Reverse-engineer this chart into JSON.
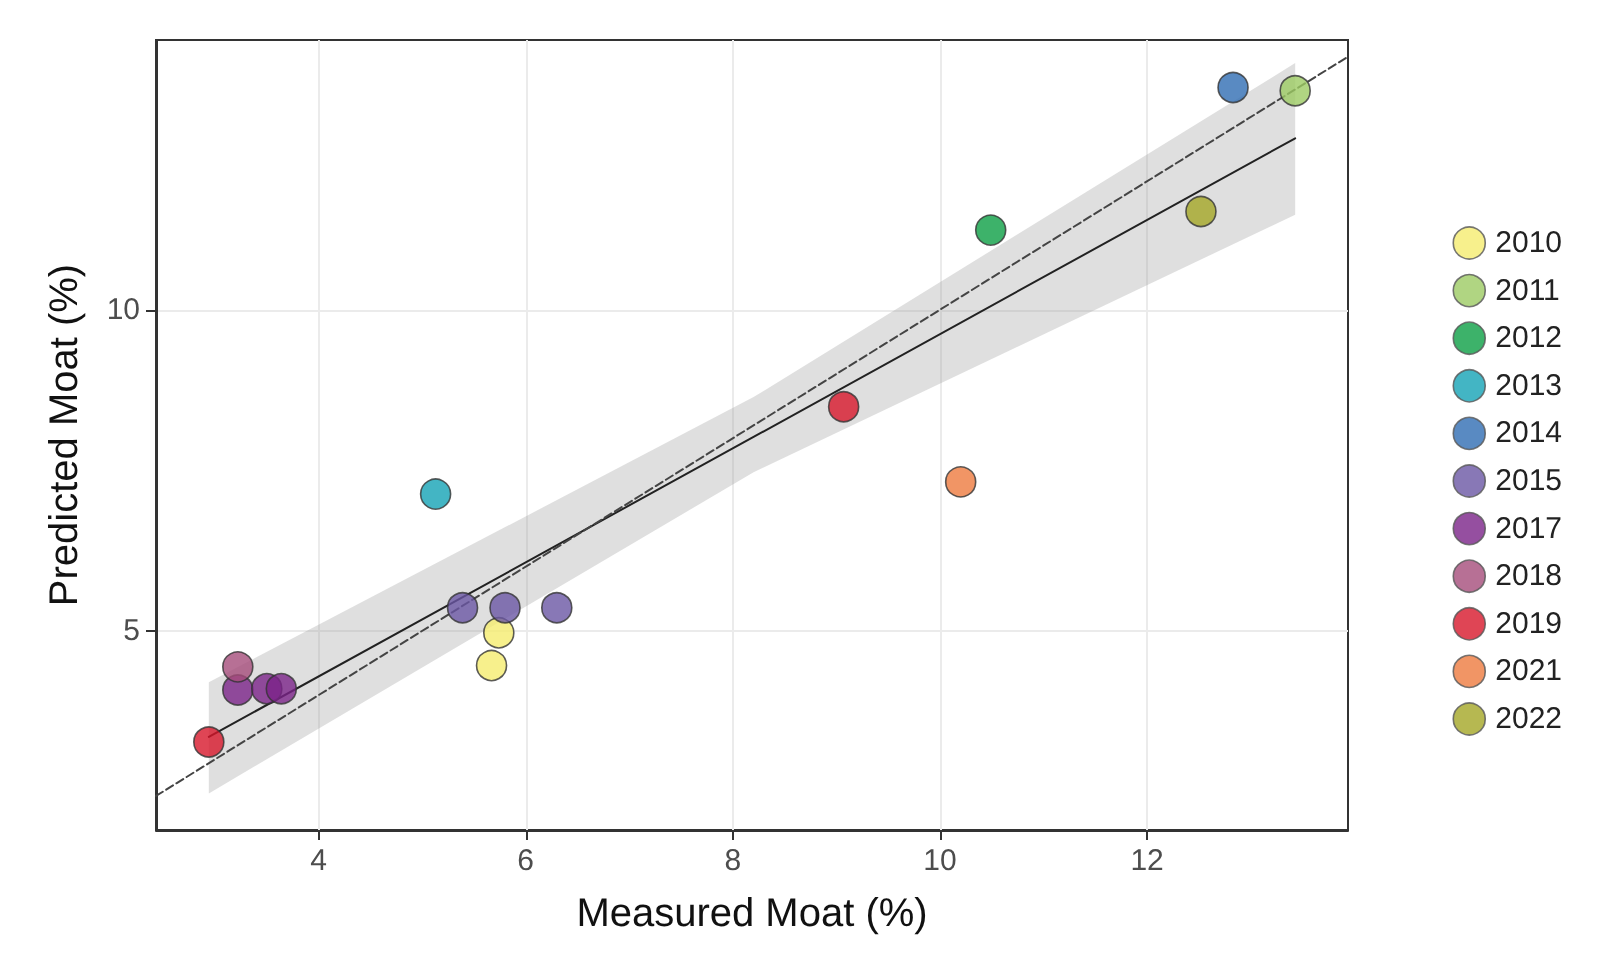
{
  "chart_data": {
    "type": "scatter",
    "xlabel": "Measured Moat (%)",
    "ylabel": "Predicted Moat (%)",
    "xlim": [
      2.43,
      13.94
    ],
    "ylim": [
      1.9,
      14.2
    ],
    "xticks": [
      4,
      6,
      8,
      10,
      12
    ],
    "yticks": [
      5,
      10
    ],
    "grid": true,
    "legend": "right",
    "marker": "circle",
    "series": [
      {
        "name": "2010",
        "color": "#f5ec6f",
        "x": [
          5.74,
          5.67
        ],
        "values": [
          4.97,
          4.46
        ]
      },
      {
        "name": "2011",
        "color": "#9ccb63",
        "x": [
          13.43
        ],
        "values": [
          13.41
        ]
      },
      {
        "name": "2012",
        "color": "#0c9f45",
        "x": [
          10.49
        ],
        "values": [
          11.24
        ]
      },
      {
        "name": "2013",
        "color": "#14a3b5",
        "x": [
          5.13
        ],
        "values": [
          7.13
        ]
      },
      {
        "name": "2014",
        "color": "#2f6db3",
        "x": [
          12.83
        ],
        "values": [
          13.46
        ]
      },
      {
        "name": "2015",
        "color": "#6a56a4",
        "x": [
          5.39,
          5.8,
          6.3
        ],
        "values": [
          5.36,
          5.36,
          5.36
        ]
      },
      {
        "name": "2017",
        "color": "#7b2388",
        "x": [
          3.22,
          3.5,
          3.64
        ],
        "values": [
          4.08,
          4.1,
          4.1
        ]
      },
      {
        "name": "2018",
        "color": "#a54c7b",
        "x": [
          3.22
        ],
        "values": [
          4.44
        ]
      },
      {
        "name": "2019",
        "color": "#d7172a",
        "x": [
          2.94,
          9.07
        ],
        "values": [
          3.27,
          8.49
        ]
      },
      {
        "name": "2021",
        "color": "#ee7a3e",
        "x": [
          10.2
        ],
        "values": [
          7.32
        ]
      },
      {
        "name": "2022",
        "color": "#a4a625",
        "x": [
          12.52
        ],
        "values": [
          11.53
        ]
      },
      {
        "type": "line",
        "color": "#222222",
        "line_style": "solid",
        "marker": "none",
        "x": [
          2.94,
          8.2,
          13.43
        ],
        "values": [
          3.35,
          8.02,
          12.67
        ],
        "lower": [
          2.47,
          7.47,
          11.48
        ],
        "upper": [
          4.2,
          8.64,
          13.84
        ]
      },
      {
        "type": "line",
        "color": "#444444",
        "line_style": "dashed",
        "marker": "none",
        "x": [
          2.43,
          13.94
        ],
        "values": [
          2.43,
          13.94
        ]
      }
    ]
  }
}
